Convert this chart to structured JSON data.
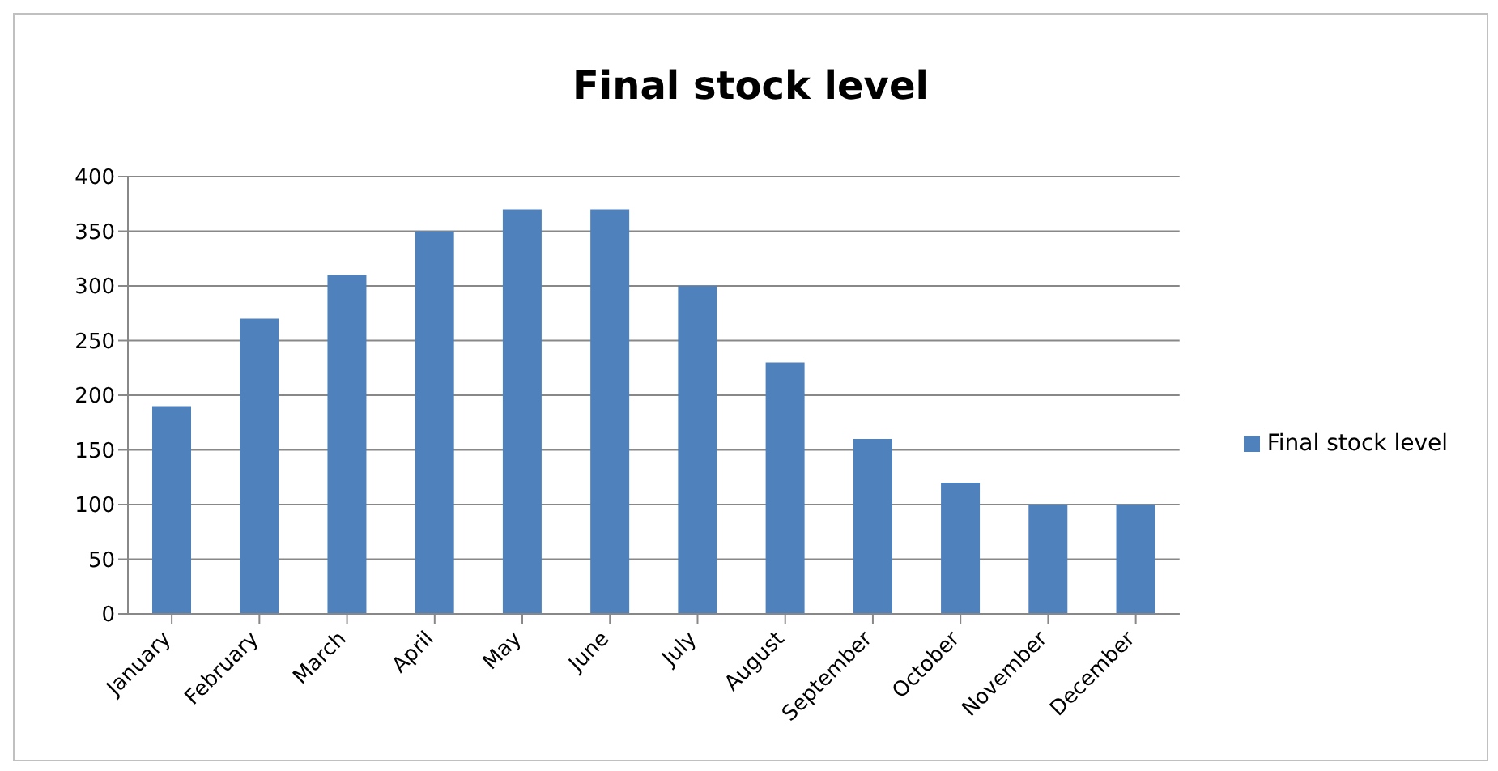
{
  "chart_data": {
    "type": "bar",
    "title": "Final stock level",
    "categories": [
      "January",
      "February",
      "March",
      "April",
      "May",
      "June",
      "July",
      "August",
      "September",
      "October",
      "November",
      "December"
    ],
    "series": [
      {
        "name": "Final stock level",
        "color": "#4f81bd",
        "values": [
          190,
          270,
          310,
          350,
          370,
          370,
          300,
          230,
          160,
          120,
          100,
          100
        ]
      }
    ],
    "ylim": [
      0,
      400
    ],
    "yticks": [
      0,
      50,
      100,
      150,
      200,
      250,
      300,
      350,
      400
    ],
    "grid": "y",
    "legend": "right"
  }
}
